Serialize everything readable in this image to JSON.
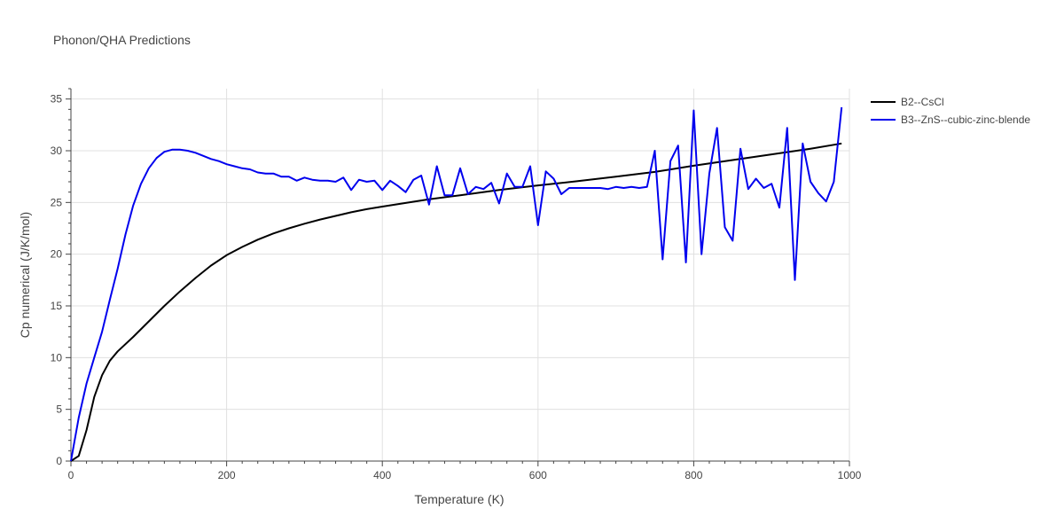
{
  "chart_data": {
    "type": "line",
    "title": "Phonon/QHA Predictions",
    "xlabel": "Temperature (K)",
    "ylabel": "Cp numerical (J/K/mol)",
    "xlim": [
      0,
      1000
    ],
    "ylim": [
      0,
      36
    ],
    "xticks": [
      0,
      200,
      400,
      600,
      800,
      1000
    ],
    "yticks": [
      0,
      5,
      10,
      15,
      20,
      25,
      30,
      35
    ],
    "grid": true,
    "legend_position": "top-right",
    "series": [
      {
        "name": "B2--CsCl",
        "color": "#000000",
        "x": [
          0,
          10,
          20,
          30,
          40,
          50,
          60,
          80,
          100,
          120,
          140,
          160,
          180,
          200,
          220,
          240,
          260,
          280,
          300,
          320,
          340,
          360,
          380,
          400,
          430,
          460,
          500,
          550,
          600,
          650,
          700,
          750,
          800,
          850,
          900,
          950,
          990
        ],
        "y": [
          0,
          0.5,
          3.0,
          6.2,
          8.3,
          9.7,
          10.6,
          12.0,
          13.5,
          15.0,
          16.4,
          17.7,
          18.9,
          19.9,
          20.7,
          21.4,
          22.0,
          22.5,
          22.95,
          23.35,
          23.7,
          24.05,
          24.35,
          24.6,
          24.95,
          25.3,
          25.7,
          26.2,
          26.65,
          27.05,
          27.5,
          27.95,
          28.55,
          29.1,
          29.65,
          30.2,
          30.7
        ]
      },
      {
        "name": "B3--ZnS--cubic-zinc-blende",
        "color": "#0000ee",
        "x": [
          0,
          10,
          20,
          30,
          40,
          50,
          60,
          70,
          80,
          90,
          100,
          110,
          120,
          130,
          140,
          150,
          160,
          170,
          180,
          190,
          200,
          210,
          220,
          230,
          240,
          250,
          260,
          270,
          280,
          290,
          300,
          310,
          320,
          330,
          340,
          350,
          360,
          370,
          380,
          390,
          400,
          410,
          420,
          430,
          440,
          450,
          460,
          470,
          480,
          490,
          500,
          510,
          520,
          530,
          540,
          550,
          560,
          570,
          580,
          590,
          600,
          610,
          620,
          630,
          640,
          650,
          660,
          670,
          680,
          690,
          700,
          710,
          720,
          730,
          740,
          750,
          760,
          770,
          780,
          790,
          800,
          810,
          820,
          830,
          840,
          850,
          860,
          870,
          880,
          890,
          900,
          910,
          920,
          930,
          940,
          950,
          960,
          970,
          980,
          990
        ],
        "y": [
          0,
          4.2,
          7.5,
          10.0,
          12.5,
          15.6,
          18.6,
          21.9,
          24.7,
          26.8,
          28.3,
          29.3,
          29.9,
          30.1,
          30.1,
          30.0,
          29.8,
          29.5,
          29.2,
          29.0,
          28.7,
          28.5,
          28.3,
          28.2,
          27.9,
          27.8,
          27.8,
          27.5,
          27.5,
          27.1,
          27.4,
          27.2,
          27.1,
          27.1,
          27.0,
          27.4,
          26.2,
          27.2,
          27.0,
          27.1,
          26.2,
          27.1,
          26.6,
          26.0,
          27.2,
          27.6,
          24.8,
          28.5,
          25.7,
          25.7,
          28.3,
          25.8,
          26.5,
          26.3,
          26.9,
          24.9,
          27.8,
          26.5,
          26.5,
          28.5,
          22.8,
          28.0,
          27.3,
          25.8,
          26.4,
          26.4,
          26.4,
          26.4,
          26.4,
          26.3,
          26.5,
          26.4,
          26.5,
          26.4,
          26.5,
          30.0,
          19.5,
          29.0,
          30.5,
          19.2,
          33.9,
          20.0,
          27.8,
          32.2,
          22.6,
          21.3,
          30.2,
          26.3,
          27.3,
          26.4,
          26.8,
          24.5,
          32.2,
          17.5,
          30.7,
          27.0,
          25.9,
          25.1,
          27.0,
          34.2
        ]
      }
    ]
  }
}
